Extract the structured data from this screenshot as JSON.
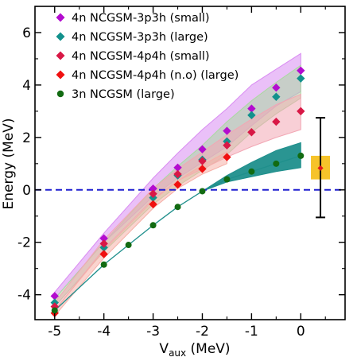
{
  "chart_data": {
    "type": "scatter",
    "xlabel_main": "V",
    "xlabel_sub": "aux",
    "xlabel_unit": " (MeV)",
    "ylabel": "Energy (MeV)",
    "xlim": [
      -5.4,
      0.9
    ],
    "ylim": [
      -4.95,
      7.0
    ],
    "xticks": [
      -5,
      -4,
      -3,
      -2,
      -1,
      0
    ],
    "yticks": [
      -4,
      -2,
      0,
      2,
      4,
      6
    ],
    "xtick_labels": [
      "-5",
      "-4",
      "-3",
      "-2",
      "-1",
      "0"
    ],
    "ytick_labels": [
      "-4",
      "-2",
      "0",
      "2",
      "4",
      "6"
    ],
    "reference_line": {
      "y": 0,
      "style": "dashed",
      "color": "#1f1fd0"
    },
    "legend_position": "top-left",
    "series": [
      {
        "name": "4n NCGSM-3p3h (small)",
        "marker": "diamond",
        "color": "#b30ccf",
        "band_color": "#d98cf2",
        "x": [
          -5,
          -4,
          -3,
          -2.5,
          -2,
          -1.5,
          -1,
          -0.5,
          0
        ],
        "y": [
          -4.05,
          -1.85,
          0.05,
          0.85,
          1.55,
          2.25,
          3.1,
          3.9,
          4.55
        ],
        "band_upper": [
          -3.9,
          -1.65,
          0.45,
          1.4,
          2.3,
          3.1,
          4.0,
          4.6,
          5.2
        ],
        "band_lower": [
          -4.15,
          -2.0,
          -0.25,
          0.45,
          1.05,
          1.65,
          2.45,
          3.2,
          3.75
        ]
      },
      {
        "name": "4n NCGSM-3p3h (large)",
        "marker": "diamond",
        "color": "#12918c",
        "band_color": "#a9d9a0",
        "x": [
          -5,
          -4,
          -3,
          -2.5,
          -2,
          -1.5,
          -1,
          -0.5,
          0
        ],
        "y": [
          -4.3,
          -2.2,
          -0.3,
          0.55,
          1.15,
          1.85,
          2.85,
          3.55,
          4.25
        ],
        "band_upper": [
          -4.15,
          -2.0,
          0.05,
          0.9,
          1.7,
          2.6,
          3.4,
          4.1,
          4.75
        ],
        "band_lower": [
          -4.45,
          -2.35,
          -0.55,
          0.15,
          0.75,
          1.35,
          2.2,
          2.9,
          3.5
        ]
      },
      {
        "name": "4n NCGSM-4p4h (small)",
        "marker": "diamond",
        "color": "#d81846",
        "band_color": "#f2a7b4",
        "x": [
          -5,
          -4,
          -3,
          -2.5,
          -2,
          -1.5,
          -1,
          -0.5,
          0
        ],
        "y": [
          -4.45,
          -2.05,
          -0.15,
          0.6,
          1.1,
          1.7,
          2.2,
          2.6,
          3.0
        ],
        "band_upper": [
          -4.3,
          -1.9,
          0.05,
          0.8,
          1.45,
          2.1,
          2.7,
          3.25,
          3.65
        ],
        "band_lower": [
          -4.6,
          -2.25,
          -0.35,
          0.35,
          0.8,
          1.25,
          1.65,
          2.0,
          2.3
        ]
      },
      {
        "name": "4n NCGSM-4p4h (n.o) (large)",
        "marker": "diamond",
        "color": "#f01010",
        "band_color": "#f5b0a8",
        "x": [
          -5,
          -4,
          -3,
          -2.5,
          -2,
          -1.5
        ],
        "y": [
          -4.7,
          -2.45,
          -0.55,
          0.2,
          0.8,
          1.25
        ],
        "band_upper": [
          -4.6,
          -2.3,
          -0.4,
          0.35,
          0.95,
          1.45
        ],
        "band_lower": [
          -4.8,
          -2.6,
          -0.7,
          0.05,
          0.6,
          1.0
        ]
      },
      {
        "name": "3n NCGSM (large)",
        "marker": "circle",
        "color": "#126b12",
        "band_color": "#1f8f8c",
        "x": [
          -5,
          -4,
          -3.5,
          -3,
          -2.5,
          -2,
          -1.5,
          -1,
          -0.5,
          0
        ],
        "y": [
          -4.6,
          -2.85,
          -2.1,
          -1.35,
          -0.65,
          -0.05,
          0.4,
          0.7,
          1.0,
          1.3
        ],
        "band_x": [
          -2,
          -1.5,
          -1,
          -0.5,
          0
        ],
        "band_upper": [
          -0.05,
          0.55,
          1.05,
          1.5,
          1.8
        ],
        "band_lower": [
          -0.05,
          0.3,
          0.5,
          0.7,
          0.85
        ]
      }
    ],
    "experimental_point": {
      "x": 0.4,
      "y": 0.83,
      "error_upper": 2.75,
      "error_lower": -1.05,
      "box_y_upper": 1.3,
      "box_y_lower": 0.4,
      "point_color": "#e01a1a",
      "box_color": "#f6c32a",
      "errorbar_color": "#000000"
    }
  }
}
